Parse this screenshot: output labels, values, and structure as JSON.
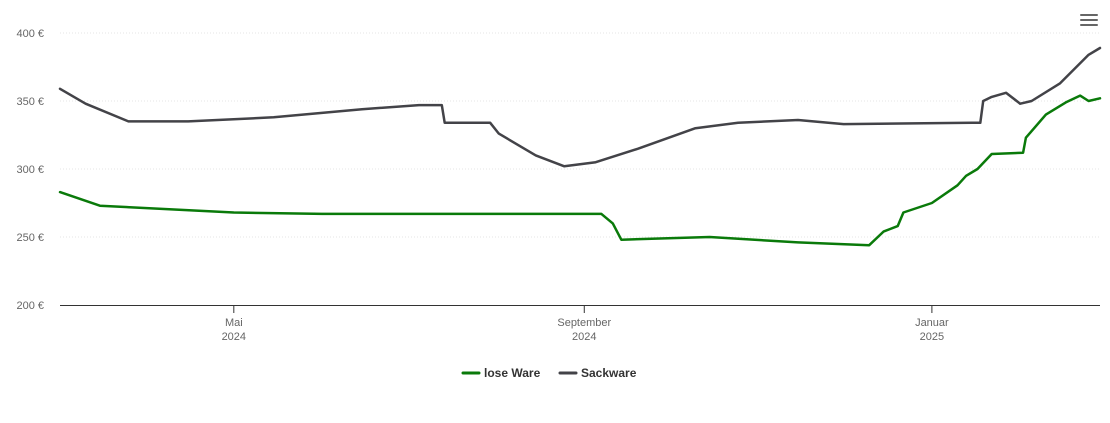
{
  "chart_data": {
    "type": "line",
    "y_ticks": [
      "200 €",
      "250 €",
      "300 €",
      "350 €",
      "400 €"
    ],
    "ylim": [
      200,
      400
    ],
    "xlim": [
      "2024-03-01",
      "2025-03-01"
    ],
    "x_ticks": [
      {
        "date": "2024-05-01",
        "line1": "Mai",
        "line2": "2024"
      },
      {
        "date": "2024-09-01",
        "line1": "September",
        "line2": "2024"
      },
      {
        "date": "2025-01-01",
        "line1": "Januar",
        "line2": "2025"
      }
    ],
    "grid": "horizontal",
    "legend_position": "bottom-center",
    "series": [
      {
        "name": "lose Ware",
        "color": "#0a7a0a",
        "points": [
          [
            "2024-03-01",
            283
          ],
          [
            "2024-03-15",
            273
          ],
          [
            "2024-05-01",
            268
          ],
          [
            "2024-06-01",
            267
          ],
          [
            "2024-09-07",
            267
          ],
          [
            "2024-09-11",
            260
          ],
          [
            "2024-09-14",
            248
          ],
          [
            "2024-10-15",
            250
          ],
          [
            "2024-11-15",
            246
          ],
          [
            "2024-12-10",
            244
          ],
          [
            "2024-12-15",
            254
          ],
          [
            "2024-12-20",
            258
          ],
          [
            "2024-12-22",
            268
          ],
          [
            "2025-01-01",
            275
          ],
          [
            "2025-01-10",
            288
          ],
          [
            "2025-01-13",
            295
          ],
          [
            "2025-01-17",
            300
          ],
          [
            "2025-01-22",
            311
          ],
          [
            "2025-02-02",
            312
          ],
          [
            "2025-02-03",
            323
          ],
          [
            "2025-02-10",
            340
          ],
          [
            "2025-02-17",
            349
          ],
          [
            "2025-02-22",
            354
          ],
          [
            "2025-02-25",
            350
          ],
          [
            "2025-03-01",
            352
          ]
        ]
      },
      {
        "name": "Sackware",
        "color": "#434348",
        "points": [
          [
            "2024-03-01",
            359
          ],
          [
            "2024-03-10",
            348
          ],
          [
            "2024-03-25",
            335
          ],
          [
            "2024-04-15",
            335
          ],
          [
            "2024-05-15",
            338
          ],
          [
            "2024-06-15",
            344
          ],
          [
            "2024-07-05",
            347
          ],
          [
            "2024-07-13",
            347
          ],
          [
            "2024-07-14",
            334
          ],
          [
            "2024-07-30",
            334
          ],
          [
            "2024-08-02",
            326
          ],
          [
            "2024-08-15",
            310
          ],
          [
            "2024-08-25",
            302
          ],
          [
            "2024-09-05",
            305
          ],
          [
            "2024-09-20",
            315
          ],
          [
            "2024-10-10",
            330
          ],
          [
            "2024-10-25",
            334
          ],
          [
            "2024-11-15",
            336
          ],
          [
            "2024-12-01",
            333
          ],
          [
            "2025-01-15",
            334
          ],
          [
            "2025-01-18",
            334
          ],
          [
            "2025-01-19",
            350
          ],
          [
            "2025-01-22",
            353
          ],
          [
            "2025-01-27",
            356
          ],
          [
            "2025-02-01",
            348
          ],
          [
            "2025-02-05",
            350
          ],
          [
            "2025-02-15",
            363
          ],
          [
            "2025-02-25",
            384
          ],
          [
            "2025-03-01",
            389
          ]
        ]
      }
    ]
  }
}
